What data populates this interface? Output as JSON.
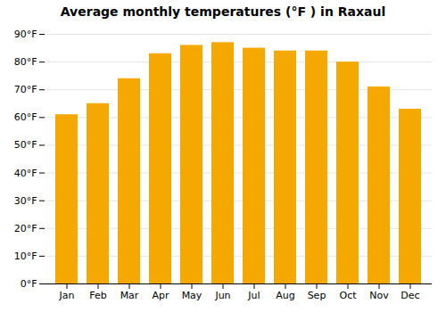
{
  "chart_data": {
    "type": "bar",
    "title": "Average monthly temperatures (°F ) in Raxaul",
    "categories": [
      "Jan",
      "Feb",
      "Mar",
      "Apr",
      "May",
      "Jun",
      "Jul",
      "Aug",
      "Sep",
      "Oct",
      "Nov",
      "Dec"
    ],
    "values": [
      61,
      65,
      74,
      83,
      86,
      87,
      85,
      84,
      84,
      80,
      71,
      63
    ],
    "color": "#F5A800",
    "ylim": [
      0,
      90
    ],
    "yticks": [
      {
        "value": 0,
        "label": "0°F"
      },
      {
        "value": 10,
        "label": "10°F"
      },
      {
        "value": 20,
        "label": "20°F"
      },
      {
        "value": 30,
        "label": "30°F"
      },
      {
        "value": 40,
        "label": "40°F"
      },
      {
        "value": 50,
        "label": "50°F"
      },
      {
        "value": 60,
        "label": "60°F"
      },
      {
        "value": 70,
        "label": "70°F"
      },
      {
        "value": 80,
        "label": "80°F"
      },
      {
        "value": 90,
        "label": "90°F"
      }
    ],
    "grid": true
  }
}
